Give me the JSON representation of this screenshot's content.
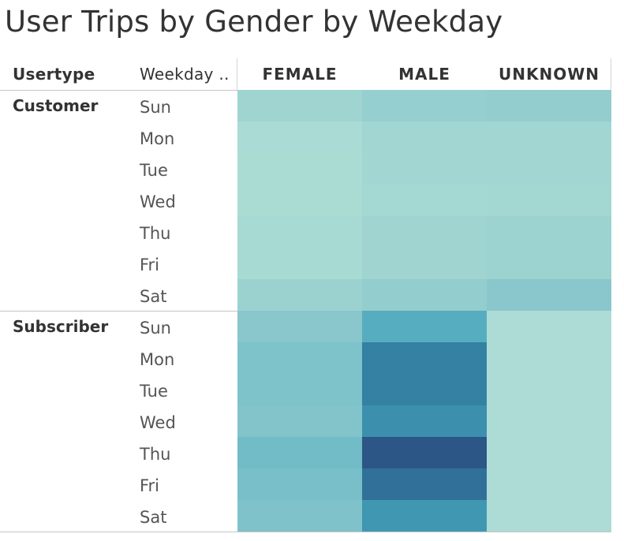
{
  "chart_data": {
    "type": "heatmap",
    "title": "User Trips by Gender by Weekday",
    "row_headers": [
      "Usertype",
      "Weekday .."
    ],
    "columns": [
      "FEMALE",
      "MALE",
      "UNKNOWN"
    ],
    "groups": [
      {
        "usertype": "Customer",
        "weekdays": [
          "Sun",
          "Mon",
          "Tue",
          "Wed",
          "Thu",
          "Fri",
          "Sat"
        ],
        "values": [
          [
            0.22,
            0.28,
            0.3
          ],
          [
            0.14,
            0.2,
            0.2
          ],
          [
            0.13,
            0.2,
            0.2
          ],
          [
            0.13,
            0.18,
            0.19
          ],
          [
            0.15,
            0.22,
            0.24
          ],
          [
            0.15,
            0.22,
            0.24
          ],
          [
            0.25,
            0.3,
            0.38
          ]
        ]
      },
      {
        "usertype": "Subscriber",
        "weekdays": [
          "Sun",
          "Mon",
          "Tue",
          "Wed",
          "Thu",
          "Fri",
          "Sat"
        ],
        "values": [
          [
            0.38,
            0.62,
            0.12
          ],
          [
            0.46,
            0.84,
            0.12
          ],
          [
            0.46,
            0.84,
            0.12
          ],
          [
            0.42,
            0.77,
            0.12
          ],
          [
            0.52,
            1.0,
            0.12
          ],
          [
            0.5,
            0.9,
            0.12
          ],
          [
            0.45,
            0.74,
            0.12
          ]
        ]
      }
    ],
    "color_scale": [
      "#bde5d9",
      "#a6d9d3",
      "#8fcacd",
      "#78bfc9",
      "#4aa6bd",
      "#3483a5",
      "#2c5686"
    ]
  }
}
